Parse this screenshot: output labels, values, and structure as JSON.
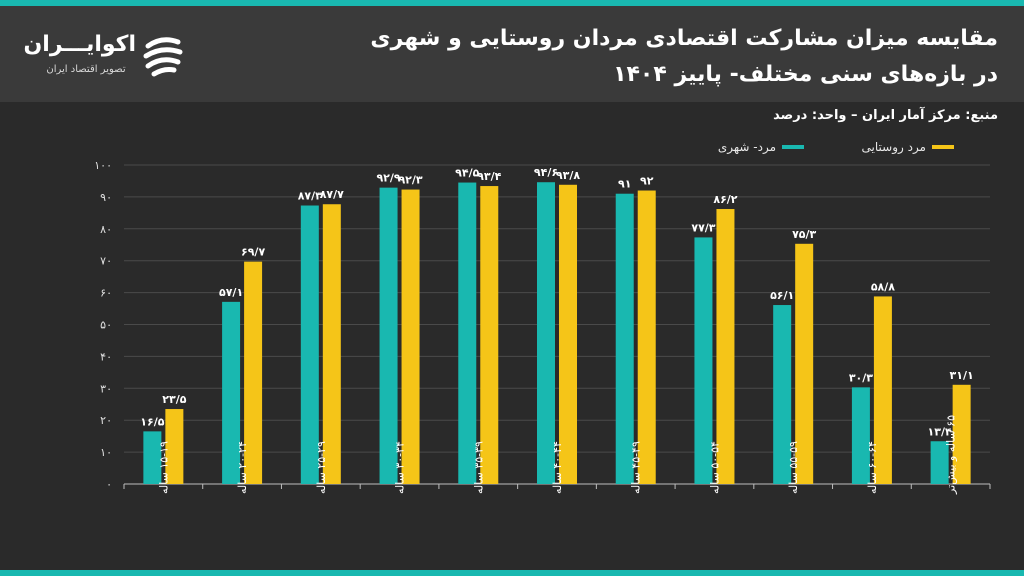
{
  "header": {
    "title_line1": "مقایسه میزان مشارکت اقتصادی مردان روستایی و شهری",
    "title_line2": "در بازه‌های سنی مختلف- پاییز ۱۴۰۴",
    "source": "منبع: مرکز آمار ایران – واحد: درصد"
  },
  "logo": {
    "name": "اکوایـــران",
    "tagline": "تصویر اقتصاد ایران"
  },
  "colors": {
    "urban": "#19b8b0",
    "rural": "#f5c518",
    "background": "#2a2a2a",
    "header": "#3a3a3a"
  },
  "chart_data": {
    "type": "bar",
    "title": "مقایسه میزان مشارکت اقتصادی مردان روستایی و شهری",
    "xlabel": "",
    "ylabel": "درصد",
    "ylim": [
      0,
      100
    ],
    "yticks": [
      0,
      10,
      20,
      30,
      40,
      50,
      60,
      70,
      80,
      90,
      100
    ],
    "ytick_labels": [
      "۰",
      "۱۰",
      "۲۰",
      "۳۰",
      "۴۰",
      "۵۰",
      "۶۰",
      "۷۰",
      "۸۰",
      "۹۰",
      "۱۰۰"
    ],
    "grid": true,
    "legend_position": "top-right",
    "categories": [
      "۱۵-۱۹ ساله",
      "۲۰-۲۴ ساله",
      "۲۵-۲۹ ساله",
      "۳۰-۳۴ ساله",
      "۳۵-۳۹ ساله",
      "۴۰-۴۴ ساله",
      "۴۵-۴۹ ساله",
      "۵۰-۵۴ ساله",
      "۵۵-۵۹ ساله",
      "۶۰-۶۴ ساله",
      "۶۵ ساله و بیش‌تر"
    ],
    "series": [
      {
        "name": "مرد- شهری",
        "color": "#19b8b0",
        "values": [
          16.5,
          57.1,
          87.3,
          92.9,
          94.5,
          94.6,
          91,
          77.3,
          56.1,
          30.3,
          13.4
        ],
        "labels": [
          "۱۶/۵",
          "۵۷/۱",
          "۸۷/۳",
          "۹۲/۹",
          "۹۴/۵",
          "۹۴/۶",
          "۹۱",
          "۷۷/۳",
          "۵۶/۱",
          "۳۰/۳",
          "۱۳/۴"
        ]
      },
      {
        "name": "مرد روستایی",
        "color": "#f5c518",
        "values": [
          23.5,
          69.7,
          87.7,
          92.3,
          93.4,
          93.8,
          92,
          86.2,
          75.3,
          58.8,
          31.1
        ],
        "labels": [
          "۲۳/۵",
          "۶۹/۷",
          "۸۷/۷",
          "۹۲/۳",
          "۹۳/۴",
          "۹۳/۸",
          "۹۲",
          "۸۶/۲",
          "۷۵/۳",
          "۵۸/۸",
          "۳۱/۱"
        ]
      }
    ]
  }
}
